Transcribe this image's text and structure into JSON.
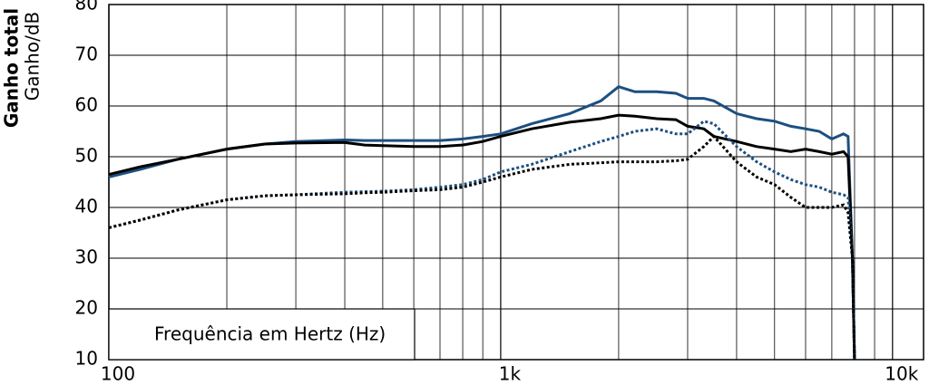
{
  "chart_data": {
    "type": "line",
    "y_label_bold": "Ganho total",
    "y_label": "Ganho/dB",
    "x_label": "Frequência em Hertz (Hz)",
    "log_x": true,
    "grid": true,
    "xlim": [
      100,
      12000
    ],
    "ylim": [
      10,
      80
    ],
    "xticks": [
      {
        "value": 100,
        "label": "100"
      },
      {
        "value": 1000,
        "label": "1k"
      },
      {
        "value": 10000,
        "label": "10k"
      }
    ],
    "xminorticks": [
      200,
      300,
      400,
      500,
      600,
      700,
      800,
      900,
      2000,
      3000,
      4000,
      5000,
      6000,
      7000,
      8000,
      9000
    ],
    "yticks": [
      10,
      20,
      30,
      40,
      50,
      60,
      70,
      80
    ],
    "x": [
      100,
      120,
      150,
      200,
      250,
      300,
      400,
      450,
      500,
      600,
      700,
      800,
      900,
      1000,
      1200,
      1500,
      1800,
      2000,
      2200,
      2500,
      2800,
      3000,
      3300,
      3500,
      4000,
      4500,
      5000,
      5500,
      6000,
      6500,
      7000,
      7500,
      7700,
      7900,
      8000
    ],
    "series": [
      {
        "color": "#1d4f80",
        "style": "solid",
        "values": [
          46,
          47.5,
          49.5,
          51.5,
          52.5,
          53,
          53.3,
          53.2,
          53.2,
          53.2,
          53.2,
          53.5,
          54,
          54.5,
          56.5,
          58.5,
          61,
          63.8,
          62.8,
          62.8,
          62.5,
          61.5,
          61.5,
          61,
          58.5,
          57.5,
          57,
          56,
          55.5,
          55,
          53.5,
          54.5,
          54,
          30,
          10
        ]
      },
      {
        "color": "#000000",
        "style": "solid",
        "values": [
          46.5,
          48,
          49.5,
          51.5,
          52.5,
          52.7,
          52.8,
          52.3,
          52.2,
          52,
          52,
          52.3,
          53,
          54,
          55.5,
          56.8,
          57.5,
          58.2,
          58,
          57.5,
          57.3,
          56,
          55.5,
          54,
          53,
          52,
          51.5,
          51,
          51.5,
          51,
          50.5,
          51,
          50,
          30,
          10
        ]
      },
      {
        "color": "#1d4f80",
        "style": "dotted",
        "values": [
          36,
          37.5,
          39.5,
          41.5,
          42.3,
          42.5,
          43,
          43.1,
          43.2,
          43.5,
          44,
          44.5,
          45.5,
          47,
          48.5,
          51,
          53,
          54,
          55,
          55.5,
          54.5,
          54.5,
          57,
          56.5,
          52,
          49,
          47,
          45.5,
          44.5,
          44,
          43,
          42.5,
          42,
          30,
          10
        ]
      },
      {
        "color": "#000000",
        "style": "dotted",
        "values": [
          36,
          37.5,
          39.5,
          41.5,
          42.3,
          42.5,
          42.7,
          42.9,
          43,
          43.3,
          43.5,
          44,
          45,
          46,
          47.5,
          48.5,
          48.8,
          49,
          49,
          49,
          49.2,
          49.5,
          52,
          54,
          49,
          46,
          44.5,
          42,
          40,
          40,
          40,
          40.5,
          39,
          30,
          10
        ]
      }
    ]
  }
}
